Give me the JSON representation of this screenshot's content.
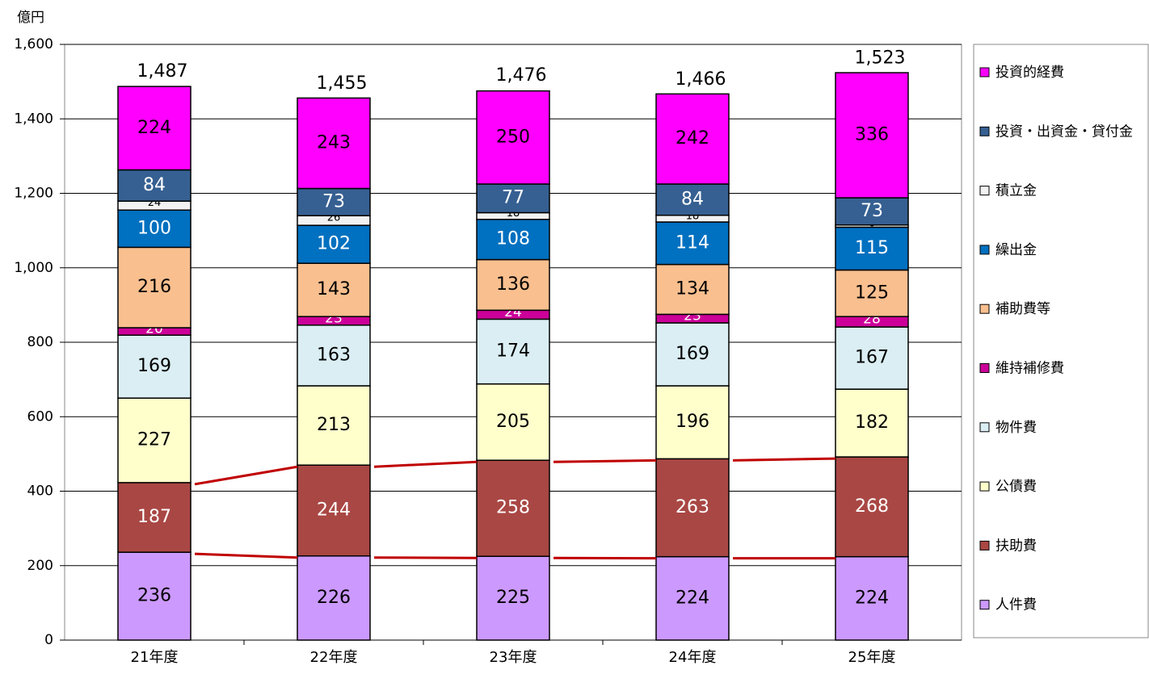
{
  "chart_data": {
    "type": "stacked_bar",
    "y_label": "億円",
    "categories": [
      "21年度",
      "22年度",
      "23年度",
      "24年度",
      "25年度"
    ],
    "series": [
      {
        "name": "人件費",
        "color": "#cc99ff",
        "label_color": "#000000",
        "values": [
          236,
          226,
          225,
          224,
          224
        ]
      },
      {
        "name": "扶助費",
        "color": "#a94744",
        "label_color": "#ffffff",
        "values": [
          187,
          244,
          258,
          263,
          268
        ]
      },
      {
        "name": "公債費",
        "color": "#ffffcc",
        "label_color": "#000000",
        "values": [
          227,
          213,
          205,
          196,
          182
        ]
      },
      {
        "name": "物件費",
        "color": "#daeef3",
        "label_color": "#000000",
        "values": [
          169,
          163,
          174,
          169,
          167
        ]
      },
      {
        "name": "維持補修費",
        "color": "#cc0099",
        "label_color": "#ffffff",
        "values": [
          20,
          23,
          24,
          23,
          28
        ]
      },
      {
        "name": "補助費等",
        "color": "#fabf8f",
        "label_color": "#000000",
        "values": [
          216,
          143,
          136,
          134,
          125
        ]
      },
      {
        "name": "繰出金",
        "color": "#0070c0",
        "label_color": "#ffffff",
        "values": [
          100,
          102,
          108,
          114,
          115
        ]
      },
      {
        "name": "積立金",
        "color": "#f2f2f2",
        "label_color": "#000000",
        "values": [
          24,
          26,
          18,
          18,
          6
        ]
      },
      {
        "name": "投資・出資金・貸付金",
        "color": "#366092",
        "label_color": "#ffffff",
        "values": [
          84,
          73,
          77,
          84,
          73
        ]
      },
      {
        "name": "投資的経費",
        "color": "#ff00ff",
        "label_color": "#000000",
        "values": [
          224,
          243,
          250,
          242,
          336
        ]
      }
    ],
    "totals": [
      1487,
      1455,
      1476,
      1466,
      1523
    ],
    "total_labels": [
      "1,487",
      "1,455",
      "1,476",
      "1,466",
      "1,523"
    ],
    "ylim": [
      0,
      1600
    ],
    "yticks": [
      0,
      200,
      400,
      600,
      800,
      {
        "value": 1000,
        "label": "1,000"
      },
      {
        "value": 1200,
        "label": "1,200"
      },
      {
        "value": 1400,
        "label": "1,400"
      },
      {
        "value": 1600,
        "label": "1,600"
      }
    ],
    "grid": true,
    "series_lines": [
      0,
      1
    ],
    "series_lines_color": "#c00000",
    "legend": "right"
  }
}
